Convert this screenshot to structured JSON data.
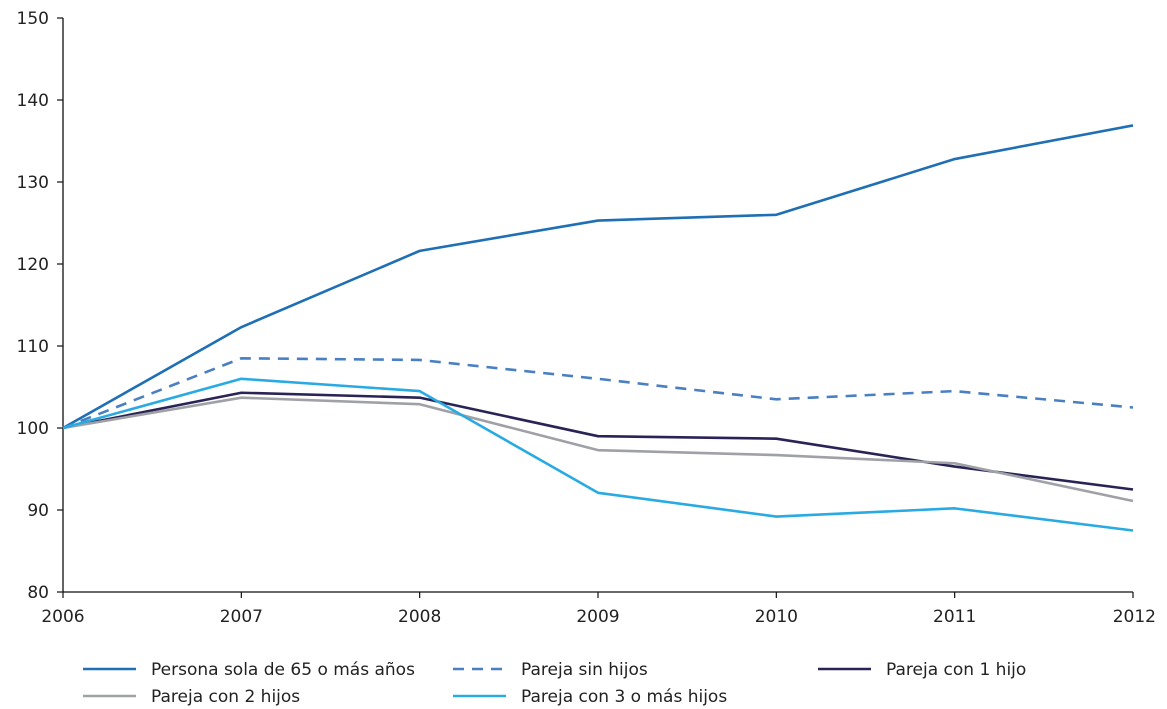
{
  "chart_data": {
    "type": "line",
    "x": [
      2006,
      2007,
      2008,
      2009,
      2010,
      2011,
      2012
    ],
    "ylim": [
      80,
      150
    ],
    "xlim": [
      2006,
      2012
    ],
    "y_ticks": [
      80,
      90,
      100,
      110,
      120,
      130,
      140,
      150
    ],
    "x_ticks": [
      2006,
      2007,
      2008,
      2009,
      2010,
      2011,
      2012
    ],
    "grid": false,
    "legend_position": "bottom",
    "series": [
      {
        "name": "Persona sola de 65 o más años",
        "values": [
          100,
          112.3,
          121.6,
          125.3,
          126.0,
          132.8,
          136.9
        ],
        "color": "#1f6fb5",
        "dash": "solid"
      },
      {
        "name": "Pareja sin hijos",
        "values": [
          100,
          108.5,
          108.3,
          106.0,
          103.5,
          104.5,
          102.5
        ],
        "color": "#4a7fc1",
        "dash": "dashed"
      },
      {
        "name": "Pareja con 1 hijo",
        "values": [
          100,
          104.3,
          103.7,
          99.0,
          98.7,
          95.3,
          92.5
        ],
        "color": "#2a2456",
        "dash": "solid"
      },
      {
        "name": "Pareja con 2 hijos",
        "values": [
          100,
          103.7,
          102.9,
          97.3,
          96.7,
          95.7,
          91.1
        ],
        "color": "#9fa1a6",
        "dash": "solid"
      },
      {
        "name": "Pareja con 3 o más hijos",
        "values": [
          100,
          106.0,
          104.5,
          92.1,
          89.2,
          90.2,
          87.5
        ],
        "color": "#2aaae2",
        "dash": "solid"
      }
    ]
  }
}
